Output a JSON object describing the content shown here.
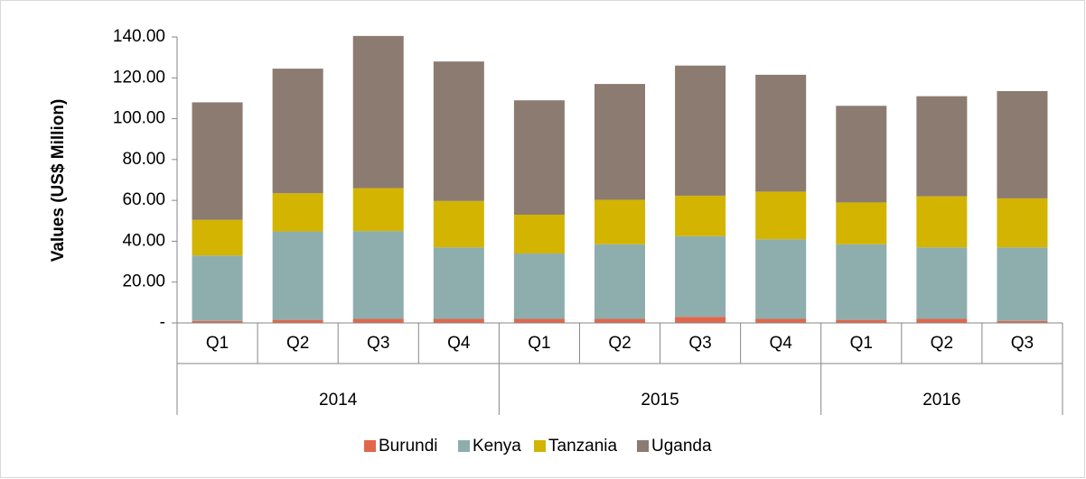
{
  "chart_data": {
    "type": "stacked_bar",
    "y_label": "Values (US$ Million)",
    "categories": [
      "Q1",
      "Q2",
      "Q3",
      "Q4",
      "Q1",
      "Q2",
      "Q3",
      "Q4",
      "Q1",
      "Q2",
      "Q3"
    ],
    "category_groups": [
      "2014",
      "2014",
      "2014",
      "2014",
      "2015",
      "2015",
      "2015",
      "2015",
      "2016",
      "2016",
      "2016"
    ],
    "series": [
      {
        "name": "Burundi",
        "color": "#e0674b",
        "values": [
          1.0,
          1.5,
          2.0,
          2.0,
          2.0,
          2.0,
          3.0,
          2.0,
          1.5,
          2.0,
          1.0
        ]
      },
      {
        "name": "Kenya",
        "color": "#8eaeae",
        "values": [
          32.0,
          43.3,
          43.0,
          35.0,
          32.0,
          36.5,
          39.5,
          39.0,
          37.0,
          35.0,
          36.0
        ]
      },
      {
        "name": "Tanzania",
        "color": "#d3b400",
        "values": [
          17.5,
          18.7,
          21.0,
          22.7,
          19.0,
          21.8,
          19.8,
          23.3,
          20.5,
          25.0,
          24.0
        ]
      },
      {
        "name": "Uganda",
        "color": "#8c7b70",
        "values": [
          57.5,
          61.0,
          74.5,
          68.3,
          56.0,
          56.7,
          63.7,
          57.2,
          47.3,
          49.0,
          52.5
        ]
      }
    ],
    "ylim": [
      0,
      140
    ],
    "yticks": [
      {
        "value": 0,
        "label": "-"
      },
      {
        "value": 20,
        "label": "20.00"
      },
      {
        "value": 40,
        "label": "40.00"
      },
      {
        "value": 60,
        "label": "60.00"
      },
      {
        "value": 80,
        "label": "80.00"
      },
      {
        "value": 100,
        "label": "100.00"
      },
      {
        "value": 120,
        "label": "120.00"
      },
      {
        "value": 140,
        "label": "140.00"
      }
    ],
    "legend": "bottom"
  }
}
